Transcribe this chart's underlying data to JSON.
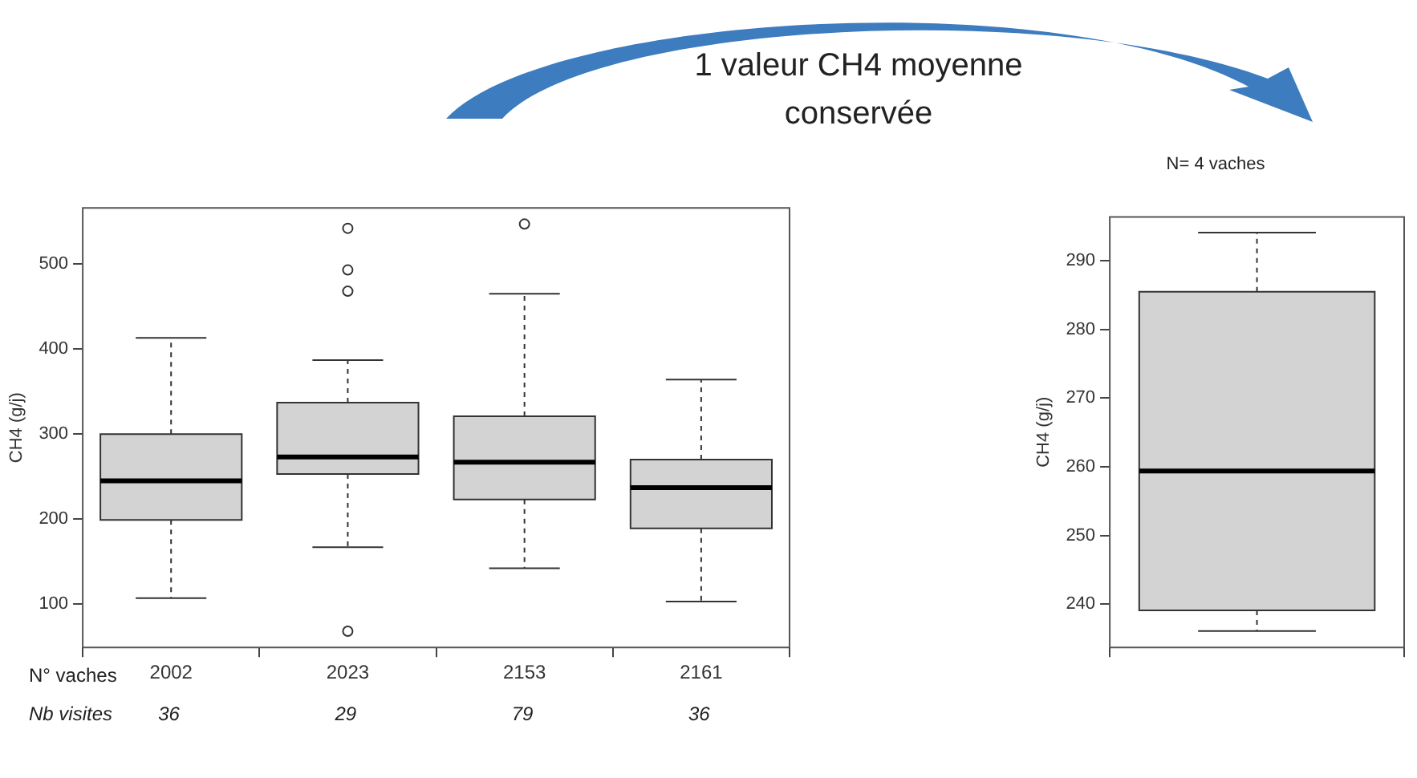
{
  "chart_data": [
    {
      "type": "box",
      "categories": [
        "2002",
        "2023",
        "2153",
        "2161"
      ],
      "xlabel": "N° vaches",
      "ylabel": "CH4 (g/j)",
      "color": "#d3d3d3",
      "ylim": [
        49,
        566
      ],
      "yticks": [
        100,
        200,
        300,
        400,
        500
      ],
      "grid": false,
      "boxes": [
        {
          "low": 107,
          "q1": 199,
          "median": 245,
          "q3": 300,
          "high": 413
        },
        {
          "low": 167,
          "q1": 253,
          "median": 273,
          "q3": 337,
          "high": 387,
          "outliers": [
            542,
            493,
            468,
            68
          ]
        },
        {
          "low": 142,
          "q1": 223,
          "median": 267,
          "q3": 321,
          "high": 465,
          "outliers": [
            547
          ]
        },
        {
          "low": 103,
          "q1": 189,
          "median": 237,
          "q3": 270,
          "high": 364
        }
      ],
      "annotations": [
        "Nb visites",
        "36",
        "29",
        "79",
        "36"
      ]
    },
    {
      "type": "box",
      "categories": [
        null
      ],
      "title": "N= 4 vaches",
      "ylabel": "CH4 (g/j)",
      "color": "#d3d3d3",
      "ylim": [
        233.7,
        296.4
      ],
      "yticks": [
        240,
        250,
        260,
        270,
        280,
        290
      ],
      "grid": false,
      "boxes": [
        {
          "low": 236.1,
          "q1": 239.1,
          "median": 259.4,
          "q3": 285.5,
          "high": 294.1
        }
      ],
      "annotations": [
        "1 valeur CH4 moyenne conservée"
      ]
    }
  ]
}
